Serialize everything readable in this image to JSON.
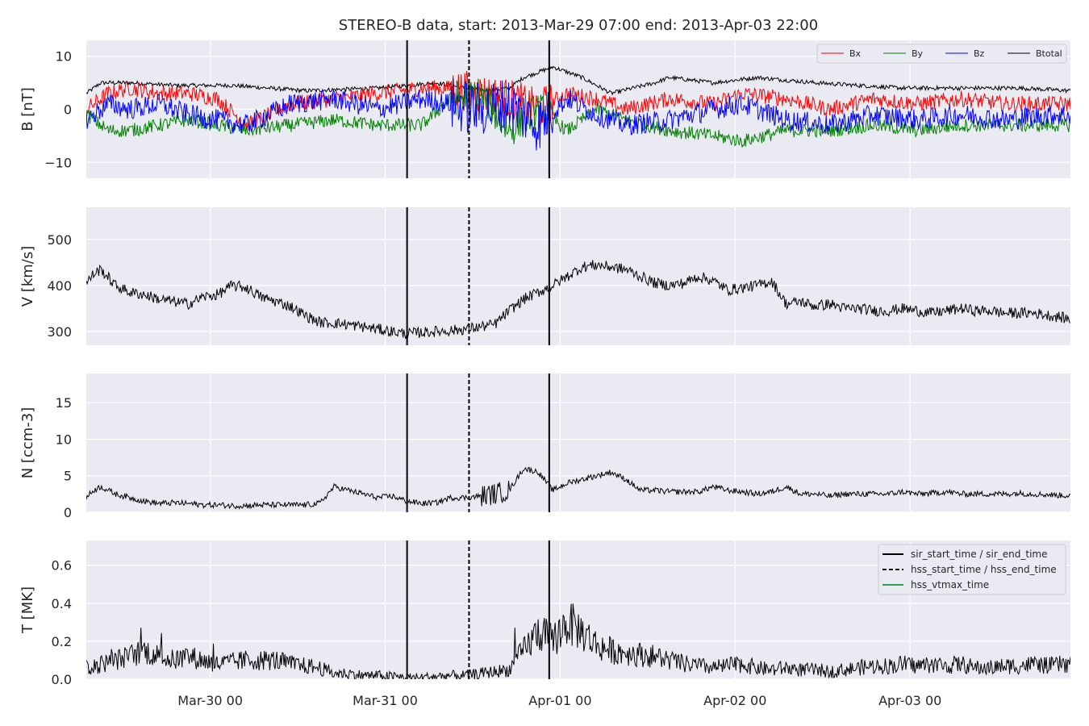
{
  "title": "STEREO-B data, start: 2013-Mar-29 07:00  end: 2013-Apr-03 22:00",
  "x_tick_labels": [
    "Mar-30 00",
    "Mar-31 00",
    "Apr-01 00",
    "Apr-02 00",
    "Apr-03 00"
  ],
  "colors": {
    "Bx": "#ff0000",
    "By": "#008000",
    "Bz": "#0000ff",
    "Btotal": "#000000",
    "hss_vtmax": "#2ca25f",
    "panel_bg": "#eaeaf2"
  },
  "event_lines": {
    "sir_start_time": "2013-03-31 03:00",
    "hss_start_time": "2013-03-31 10:00",
    "sir_end_time": "2013-03-31 22:30"
  },
  "legend_top": [
    "Bx",
    "By",
    "Bz",
    "Btotal"
  ],
  "legend_bottom": [
    "sir_start_time / sir_end_time",
    "hss_start_time / hss_end_time",
    "hss_vtmax_time"
  ],
  "chart_data": [
    {
      "type": "line",
      "ylabel": "B [nT]",
      "ylim": [
        -13,
        13
      ],
      "yticks": [
        -10,
        0,
        10
      ],
      "xlim": [
        0,
        135
      ],
      "x_unit": "hours since 2013-Mar-29 07:00",
      "legend_position": "upper-right",
      "series": [
        {
          "name": "Btotal",
          "x": [
            0,
            2,
            6,
            12,
            20,
            30,
            40,
            48,
            52,
            55,
            58,
            60,
            64,
            68,
            72,
            75,
            78,
            80,
            86,
            92,
            96,
            100,
            106,
            112,
            120,
            128,
            135
          ],
          "values": [
            3,
            5,
            5,
            4.5,
            4.5,
            3.5,
            4,
            5,
            4,
            3.5,
            4,
            6,
            8,
            6,
            3,
            4,
            5,
            6,
            5,
            6,
            5.5,
            5,
            4.5,
            4,
            4,
            4,
            3.5
          ]
        },
        {
          "name": "Bx",
          "x": [
            0,
            3,
            6,
            10,
            14,
            18,
            22,
            28,
            34,
            40,
            46,
            50,
            54,
            58,
            62,
            66,
            70,
            74,
            80,
            86,
            90,
            96,
            102,
            108,
            114,
            120,
            126,
            132,
            135
          ],
          "values": [
            0,
            3,
            4,
            3,
            3,
            2,
            -3,
            1,
            2,
            3,
            4,
            4,
            3,
            2,
            0,
            3,
            2,
            0,
            2,
            1,
            3,
            2,
            0,
            2,
            1,
            2,
            1,
            1,
            1
          ]
        },
        {
          "name": "By",
          "x": [
            0,
            3,
            6,
            10,
            14,
            18,
            22,
            28,
            34,
            40,
            46,
            50,
            54,
            58,
            62,
            66,
            70,
            74,
            80,
            86,
            90,
            96,
            102,
            108,
            114,
            120,
            126,
            132,
            135
          ],
          "values": [
            -1,
            -4,
            -4,
            -3,
            -2,
            -3,
            -4,
            -3,
            -2,
            -3,
            -3,
            2,
            3,
            -4,
            0,
            -4,
            0,
            -2,
            -4,
            -5,
            -6,
            -4,
            -4,
            -3,
            -4,
            -3,
            -3,
            -3,
            -3
          ]
        },
        {
          "name": "Bz",
          "x": [
            0,
            3,
            6,
            10,
            14,
            18,
            22,
            28,
            34,
            40,
            46,
            50,
            54,
            58,
            62,
            66,
            70,
            74,
            80,
            86,
            90,
            96,
            102,
            108,
            114,
            120,
            126,
            132,
            135
          ],
          "values": [
            -2,
            1,
            0,
            1,
            -1,
            -2,
            -3,
            1,
            2,
            0,
            2,
            1,
            0,
            1,
            -3,
            2,
            -1,
            -3,
            -2,
            0,
            1,
            -2,
            -3,
            -1,
            -2,
            -1,
            -2,
            -1,
            -1
          ]
        }
      ]
    },
    {
      "type": "line",
      "ylabel": "V [km/s]",
      "ylim": [
        270,
        570
      ],
      "yticks": [
        300,
        400,
        500
      ],
      "xlim": [
        0,
        135
      ],
      "series": [
        {
          "name": "V",
          "x": [
            0,
            1,
            2,
            4,
            6,
            8,
            10,
            12,
            14,
            16,
            18,
            20,
            22,
            24,
            26,
            28,
            30,
            32,
            34,
            36,
            38,
            40,
            42,
            44,
            46,
            48,
            50,
            52,
            54,
            56,
            58,
            60,
            62,
            64,
            66,
            68,
            70,
            72,
            74,
            76,
            78,
            80,
            82,
            84,
            86,
            88,
            90,
            92,
            94,
            96,
            98,
            100,
            102,
            104,
            106,
            108,
            110,
            112,
            114,
            116,
            118,
            120,
            122,
            124,
            126,
            128,
            130,
            132,
            134,
            135
          ],
          "values": [
            405,
            425,
            435,
            400,
            385,
            380,
            370,
            365,
            360,
            375,
            380,
            400,
            395,
            375,
            365,
            355,
            335,
            320,
            318,
            315,
            310,
            305,
            300,
            295,
            298,
            300,
            302,
            305,
            310,
            315,
            345,
            370,
            385,
            400,
            420,
            440,
            445,
            440,
            435,
            420,
            405,
            400,
            405,
            420,
            410,
            390,
            395,
            400,
            410,
            360,
            365,
            355,
            360,
            350,
            350,
            345,
            345,
            350,
            345,
            340,
            345,
            350,
            345,
            345,
            340,
            340,
            340,
            335,
            330,
            325
          ]
        }
      ]
    },
    {
      "type": "line",
      "ylabel": "N [ccm-3]",
      "ylim": [
        0,
        19
      ],
      "yticks": [
        0,
        5,
        10,
        15
      ],
      "xlim": [
        0,
        135
      ],
      "series": [
        {
          "name": "N",
          "x": [
            0,
            1,
            2,
            4,
            6,
            8,
            10,
            12,
            14,
            16,
            18,
            20,
            22,
            24,
            26,
            28,
            30,
            32,
            34,
            36,
            38,
            40,
            42,
            44,
            46,
            48,
            50,
            52,
            54,
            56,
            58,
            60,
            62,
            64,
            66,
            68,
            70,
            72,
            74,
            76,
            78,
            80,
            82,
            84,
            86,
            88,
            90,
            92,
            94,
            96,
            98,
            100,
            102,
            104,
            106,
            108,
            110,
            112,
            114,
            116,
            118,
            120,
            122,
            124,
            126,
            128,
            130,
            132,
            134,
            135
          ],
          "values": [
            2,
            3,
            3.5,
            2.5,
            2,
            1.5,
            1.2,
            1.3,
            1.2,
            1,
            1,
            0.9,
            0.9,
            1,
            1,
            1,
            1,
            1.2,
            3.5,
            3,
            2.5,
            2,
            2.2,
            1.5,
            1.2,
            1.3,
            2,
            2,
            2.2,
            2.5,
            3,
            6,
            5.5,
            3,
            4,
            4.5,
            5,
            5.5,
            4.5,
            3,
            3,
            2.8,
            2.8,
            2.8,
            3.5,
            3,
            2.8,
            2.5,
            2.8,
            3.5,
            2.5,
            2.5,
            2.2,
            2.5,
            2.5,
            2.5,
            2.5,
            2.8,
            2.5,
            2.6,
            2.8,
            2.5,
            2.5,
            2.5,
            2.5,
            2.6,
            2.5,
            2.4,
            2.3,
            2.3
          ]
        }
      ]
    },
    {
      "type": "line",
      "ylabel": "T [MK]",
      "ylim": [
        0,
        0.73
      ],
      "yticks": [
        0.0,
        0.2,
        0.4,
        0.6
      ],
      "xlim": [
        0,
        135
      ],
      "series": [
        {
          "name": "T",
          "x": [
            0,
            1,
            2,
            4,
            6,
            8,
            10,
            12,
            14,
            16,
            18,
            20,
            22,
            24,
            26,
            28,
            30,
            32,
            34,
            36,
            38,
            40,
            42,
            44,
            46,
            48,
            50,
            52,
            54,
            56,
            58,
            60,
            62,
            64,
            66,
            68,
            70,
            72,
            74,
            76,
            78,
            80,
            82,
            84,
            86,
            88,
            90,
            92,
            94,
            96,
            98,
            100,
            102,
            104,
            106,
            108,
            110,
            112,
            114,
            116,
            118,
            120,
            122,
            124,
            126,
            128,
            130,
            132,
            134,
            135
          ],
          "values": [
            0.07,
            0.05,
            0.08,
            0.1,
            0.12,
            0.15,
            0.12,
            0.1,
            0.12,
            0.1,
            0.08,
            0.09,
            0.1,
            0.1,
            0.1,
            0.08,
            0.07,
            0.06,
            0.03,
            0.03,
            0.02,
            0.02,
            0.015,
            0.01,
            0.01,
            0.015,
            0.02,
            0.02,
            0.03,
            0.04,
            0.05,
            0.15,
            0.25,
            0.2,
            0.3,
            0.25,
            0.18,
            0.15,
            0.14,
            0.13,
            0.12,
            0.1,
            0.08,
            0.07,
            0.06,
            0.07,
            0.08,
            0.06,
            0.05,
            0.06,
            0.05,
            0.05,
            0.04,
            0.05,
            0.06,
            0.07,
            0.07,
            0.08,
            0.07,
            0.08,
            0.07,
            0.08,
            0.06,
            0.06,
            0.07,
            0.07,
            0.08,
            0.07,
            0.08,
            0.08
          ]
        }
      ]
    }
  ]
}
